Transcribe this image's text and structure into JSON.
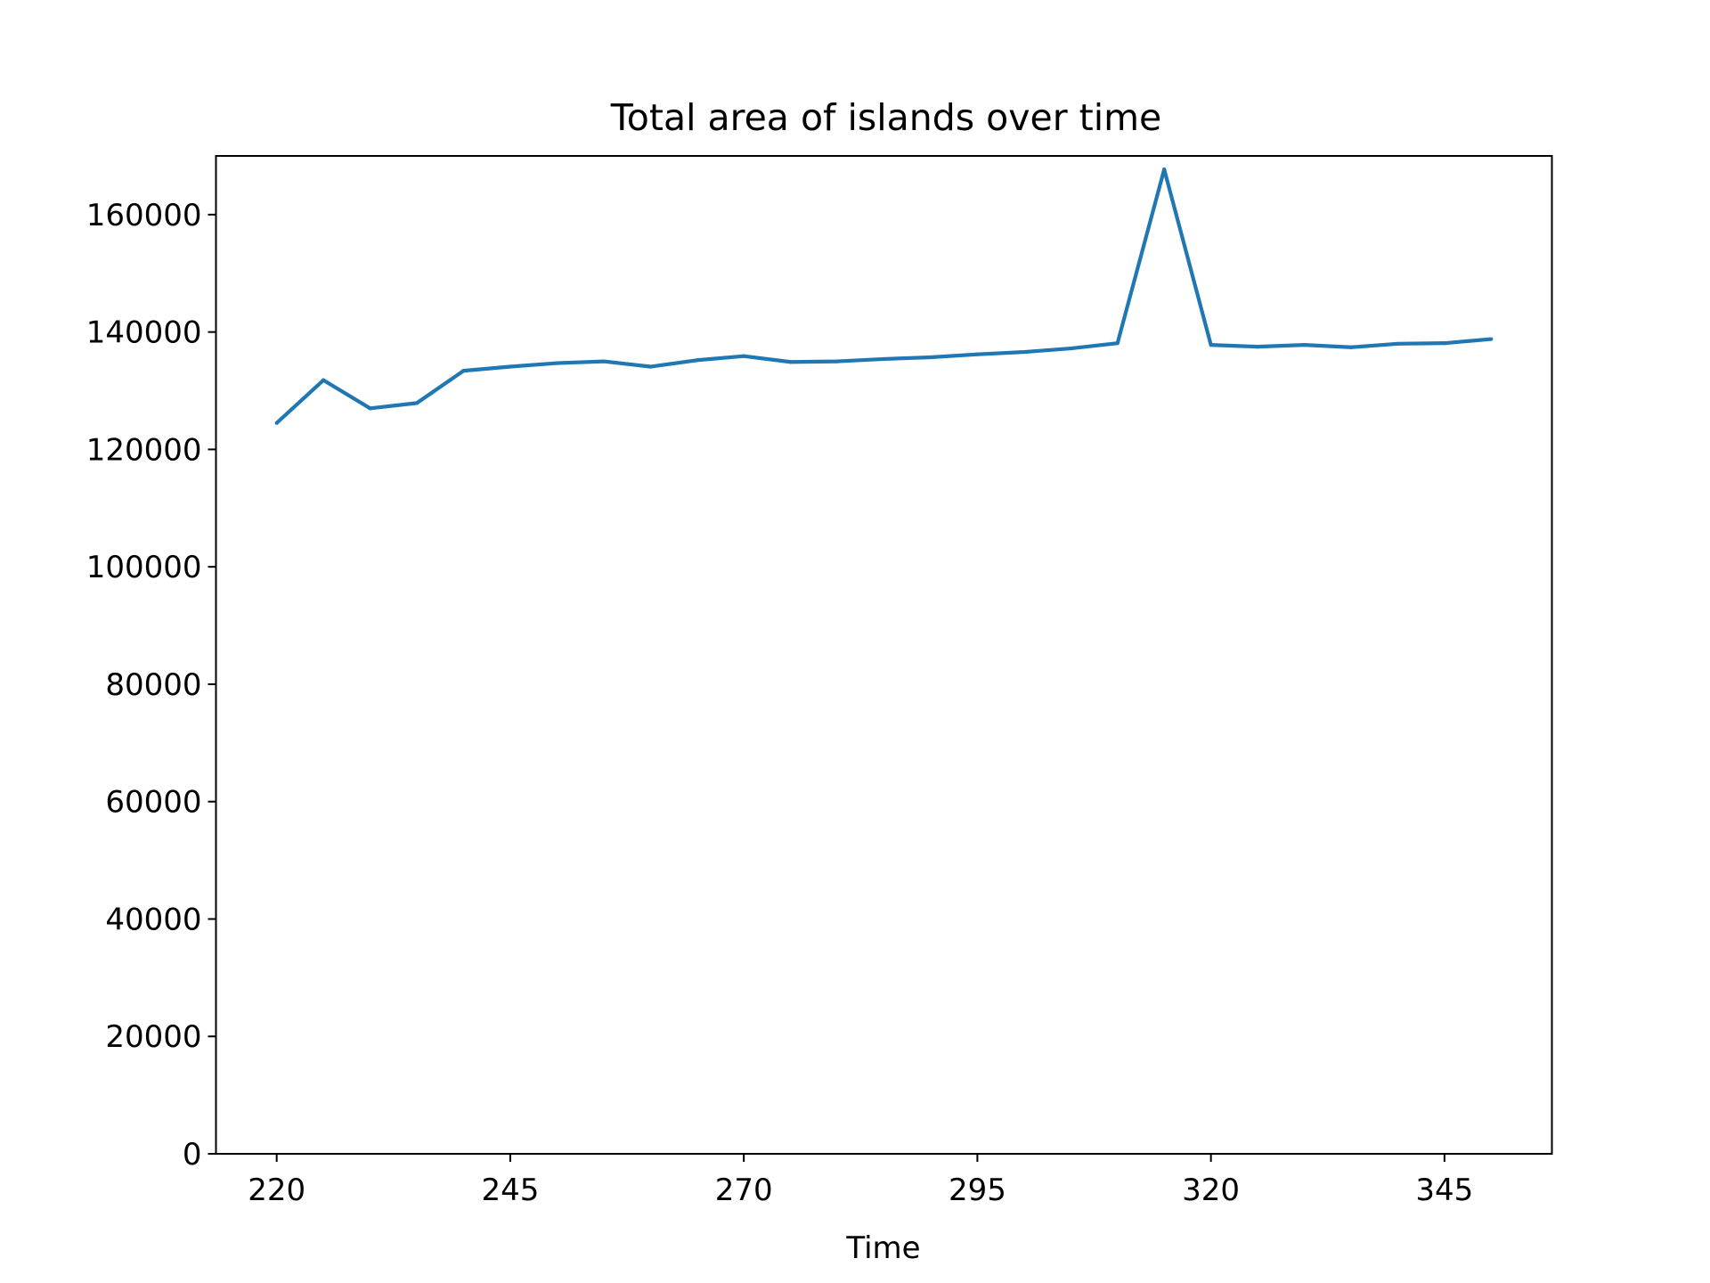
{
  "chart_data": {
    "type": "line",
    "title": "Total area of islands over time",
    "xlabel": "Time",
    "ylabel": "",
    "xlim": [
      213.5,
      356.5
    ],
    "ylim": [
      0,
      170000
    ],
    "x_ticks": [
      220,
      245,
      270,
      295,
      320,
      345
    ],
    "y_ticks": [
      0,
      20000,
      40000,
      60000,
      80000,
      100000,
      120000,
      140000,
      160000
    ],
    "grid": false,
    "legend": "none",
    "colors": {
      "line": "#1f77b4",
      "frame": "#000000",
      "text": "#000000"
    },
    "series": [
      {
        "x": [
          220,
          225,
          230,
          235,
          240,
          245,
          250,
          255,
          260,
          265,
          270,
          275,
          280,
          285,
          290,
          295,
          300,
          305,
          310,
          315,
          320,
          325,
          330,
          335,
          340,
          345,
          350
        ],
        "values": [
          124500,
          131800,
          127000,
          127900,
          133400,
          134100,
          134700,
          135000,
          134100,
          135200,
          135900,
          134900,
          135000,
          135400,
          135700,
          136200,
          136600,
          137200,
          138100,
          167700,
          137800,
          137500,
          137800,
          137400,
          138000,
          138100,
          138800
        ]
      }
    ]
  }
}
